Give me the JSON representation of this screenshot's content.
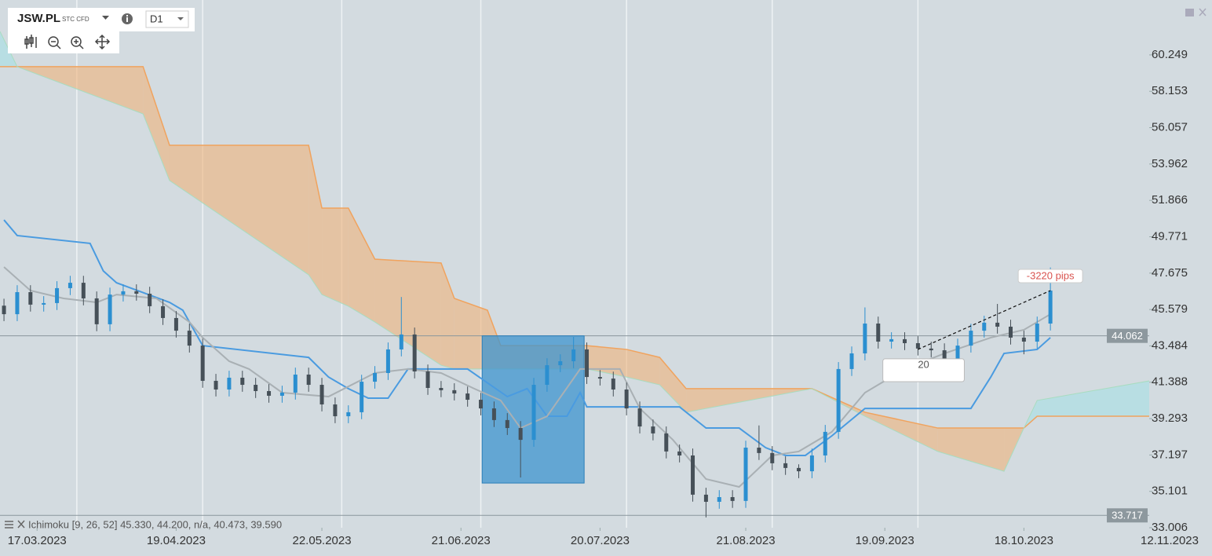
{
  "toolbar": {
    "symbol": "JSW.PL",
    "tag": "STC CFD",
    "timeframe": "D1"
  },
  "indicator": {
    "text": "Ichimoku [9, 26, 52] 45.330, 44.200, n/a, 40.473, 39.590"
  },
  "chart_data": {
    "type": "candlestick",
    "up_color": "#2b8fd0",
    "down_color": "#465058",
    "x": [
      0,
      2,
      4,
      6,
      8,
      10,
      12,
      14,
      16,
      18,
      20,
      22,
      24,
      26,
      28,
      30,
      32,
      34,
      36,
      38,
      40,
      42,
      44,
      46,
      48,
      50,
      52,
      54,
      56,
      58,
      60,
      62,
      64,
      66,
      68,
      70,
      72,
      74,
      76,
      78,
      80,
      82,
      84,
      86,
      88,
      90,
      92,
      94,
      96,
      98,
      100,
      102,
      104,
      106,
      108,
      110,
      112,
      114,
      116,
      118,
      120,
      122,
      124,
      126,
      128,
      130,
      132,
      134,
      136,
      138,
      140,
      142,
      144,
      146,
      148,
      150,
      152,
      154,
      156,
      158
    ],
    "open": [
      45.8,
      45.31,
      46.58,
      45.86,
      45.95,
      46.81,
      47.12,
      46.22,
      44.73,
      46.44,
      46.63,
      46.49,
      45.77,
      45.09,
      44.36,
      43.5,
      41.47,
      40.97,
      41.65,
      41.24,
      40.88,
      40.61,
      40.79,
      41.83,
      41.24,
      40.11,
      39.43,
      39.66,
      41.42,
      41.92,
      43.28,
      44.14,
      42.01,
      41.06,
      40.93,
      40.74,
      40.38,
      39.88,
      39.21,
      38.75,
      38.07,
      41.24,
      42.37,
      42.6,
      43.28,
      41.69,
      41.6,
      40.97,
      39.88,
      38.84,
      38.44,
      37.4,
      37.17,
      34.91,
      34.5,
      34.77,
      34.55,
      37.62,
      37.31,
      36.72,
      36.45,
      36.26,
      37.17,
      38.53,
      42.15,
      43.05,
      44.77,
      43.73,
      43.87,
      43.64,
      43.33,
      43.23,
      42.15,
      43.5,
      44.36,
      44.82,
      44.59,
      43.96,
      43.73,
      44.77
    ],
    "high": [
      46.2,
      46.98,
      46.98,
      46.35,
      47.21,
      47.52,
      47.52,
      46.62,
      46.84,
      47.03,
      47.03,
      46.89,
      46.17,
      45.49,
      44.76,
      43.9,
      41.87,
      42.05,
      42.05,
      41.64,
      41.28,
      41.19,
      42.23,
      42.23,
      41.64,
      40.51,
      40.06,
      41.82,
      42.32,
      43.68,
      46.3,
      44.54,
      42.41,
      41.46,
      41.33,
      41.14,
      40.78,
      40.28,
      39.61,
      39.15,
      41.64,
      42.77,
      43.0,
      44.0,
      43.68,
      42.09,
      42.0,
      41.37,
      40.28,
      39.24,
      38.84,
      37.8,
      37.57,
      35.31,
      35.17,
      35.17,
      38.02,
      38.9,
      37.71,
      37.12,
      36.66,
      37.57,
      38.93,
      42.55,
      43.45,
      45.7,
      45.17,
      44.27,
      44.27,
      44.04,
      43.73,
      43.63,
      43.9,
      44.76,
      45.22,
      45.9,
      44.99,
      44.36,
      45.17,
      48.0
    ],
    "low": [
      44.91,
      44.91,
      45.46,
      45.46,
      45.55,
      46.41,
      45.82,
      44.33,
      44.33,
      46.04,
      46.09,
      45.37,
      44.69,
      43.96,
      43.1,
      41.07,
      40.57,
      40.57,
      40.84,
      40.48,
      40.21,
      40.21,
      40.39,
      40.84,
      39.71,
      39.03,
      39.03,
      39.26,
      41.02,
      41.52,
      42.88,
      41.61,
      40.66,
      40.53,
      40.34,
      39.98,
      39.48,
      38.81,
      38.35,
      35.9,
      37.67,
      40.84,
      41.97,
      42.2,
      41.29,
      41.2,
      40.57,
      39.48,
      38.44,
      38.04,
      37.0,
      36.77,
      34.51,
      33.6,
      34.1,
      34.15,
      34.15,
      36.91,
      36.32,
      36.05,
      35.86,
      35.86,
      36.77,
      38.13,
      41.75,
      42.65,
      43.33,
      43.33,
      43.24,
      42.93,
      42.83,
      41.75,
      41.75,
      43.1,
      43.96,
      44.19,
      43.56,
      43.0,
      43.33,
      44.37
    ],
    "close": [
      45.31,
      46.58,
      45.86,
      45.95,
      46.81,
      47.12,
      46.22,
      44.73,
      46.44,
      46.63,
      46.49,
      45.77,
      45.09,
      44.36,
      43.5,
      41.47,
      40.97,
      41.65,
      41.24,
      40.88,
      40.61,
      40.79,
      41.83,
      41.24,
      40.11,
      39.43,
      39.66,
      41.42,
      41.92,
      43.28,
      44.14,
      42.01,
      41.06,
      40.93,
      40.74,
      40.38,
      39.88,
      39.21,
      38.75,
      38.07,
      41.24,
      42.37,
      42.6,
      43.28,
      41.69,
      41.6,
      40.97,
      39.88,
      38.84,
      38.44,
      37.4,
      37.17,
      34.91,
      34.5,
      34.77,
      34.55,
      37.62,
      37.31,
      36.72,
      36.45,
      36.26,
      37.17,
      38.53,
      42.15,
      43.05,
      44.77,
      43.73,
      43.87,
      43.64,
      43.33,
      43.23,
      42.15,
      43.5,
      44.36,
      44.82,
      44.59,
      43.96,
      43.73,
      44.77,
      46.67
    ],
    "lines": [
      {
        "color": "#4a9be0",
        "x": [
          0,
          2,
          13,
          15,
          17,
          25,
          27,
          30,
          46,
          49,
          52,
          55,
          58,
          61,
          70,
          76,
          79,
          82,
          85,
          87,
          88,
          102,
          106,
          111,
          115,
          118,
          121,
          125,
          130,
          146,
          149,
          151,
          156,
          158
        ],
        "values": [
          50.74,
          49.84,
          49.39,
          47.8,
          47.12,
          45.99,
          45.54,
          43.5,
          42.82,
          41.69,
          41.02,
          40.47,
          40.47,
          42.15,
          42.15,
          40.56,
          41.02,
          39.43,
          39.43,
          40.79,
          39.97,
          39.97,
          38.75,
          38.75,
          37.62,
          37.17,
          37.17,
          38.3,
          39.88,
          39.88,
          41.69,
          43.05,
          43.28,
          43.96
        ]
      },
      {
        "color": "#a9b0b4",
        "x": [
          0,
          4,
          9,
          14,
          17,
          23,
          28,
          30,
          34,
          37,
          42,
          49,
          56,
          61,
          66,
          71,
          75,
          78,
          82,
          87,
          93,
          96,
          101,
          106,
          111,
          116,
          120,
          125,
          130,
          136,
          142,
          149,
          154,
          158
        ],
        "values": [
          48.03,
          46.67,
          46.22,
          45.99,
          46.44,
          46.22,
          44.86,
          43.96,
          42.6,
          42.15,
          40.79,
          40.56,
          41.92,
          42.15,
          41.92,
          41.02,
          40.34,
          38.75,
          39.43,
          42.15,
          42.15,
          39.88,
          38.07,
          35.81,
          35.36,
          37.17,
          37.4,
          38.53,
          40.79,
          42.15,
          43.05,
          43.96,
          44.41,
          45.31
        ]
      }
    ],
    "cloud": {
      "x": [
        -0.6,
        2,
        21,
        25,
        46,
        48,
        52,
        56,
        66,
        68,
        73,
        75,
        88,
        94,
        99,
        103,
        122,
        130,
        141,
        151,
        154,
        156,
        173
      ],
      "span_a": [
        61.6,
        59.57,
        56.85,
        53.01,
        47.58,
        46.44,
        45.77,
        44.86,
        42.37,
        42.15,
        42.15,
        42.15,
        42.15,
        41.69,
        41.24,
        39.66,
        41.02,
        39.43,
        37.4,
        36.26,
        38.75,
        40.34,
        41.47
      ],
      "span_b": [
        59.57,
        59.57,
        59.57,
        55.04,
        55.04,
        51.42,
        51.42,
        48.48,
        48.26,
        46.22,
        45.54,
        43.5,
        43.5,
        43.28,
        42.82,
        41.02,
        41.02,
        39.66,
        38.75,
        38.75,
        38.75,
        39.43,
        39.43
      ],
      "bear_color": "#f0b27a",
      "bull_color": "#a6e0e4"
    },
    "price_lines": [
      44.062,
      33.717
    ],
    "rectangle": {
      "x": [
        72.2,
        87.6
      ],
      "y": [
        35.58,
        44.062
      ],
      "color": "#3d94cf"
    },
    "trend": {
      "x": [
        138,
        158
      ],
      "y": [
        43.28,
        46.67
      ],
      "label": "-3220 pips"
    },
    "ruler": {
      "x": [
        132.7,
        145
      ],
      "y": [
        41.42,
        42.74
      ],
      "label": "20"
    },
    "xlim": [
      -0.6,
      182.4
    ],
    "ylim": [
      33.006,
      62.96
    ],
    "yticks": [
      60.249,
      58.153,
      56.057,
      53.962,
      51.866,
      49.771,
      47.675,
      45.579,
      43.484,
      41.388,
      39.293,
      37.197,
      35.101,
      33.006
    ],
    "xticks": [
      {
        "value": 5,
        "label": "17.03.2023"
      },
      {
        "value": 26,
        "label": "19.04.2023"
      },
      {
        "value": 48,
        "label": "22.05.2023"
      },
      {
        "value": 69,
        "label": "21.06.2023"
      },
      {
        "value": 90,
        "label": "20.07.2023"
      },
      {
        "value": 112,
        "label": "21.08.2023"
      },
      {
        "value": 133,
        "label": "19.09.2023"
      },
      {
        "value": 154,
        "label": "18.10.2023"
      },
      {
        "value": 176,
        "label": "12.11.2023"
      }
    ],
    "xgrid": [
      11,
      30,
      51,
      72,
      94,
      116,
      138
    ]
  }
}
